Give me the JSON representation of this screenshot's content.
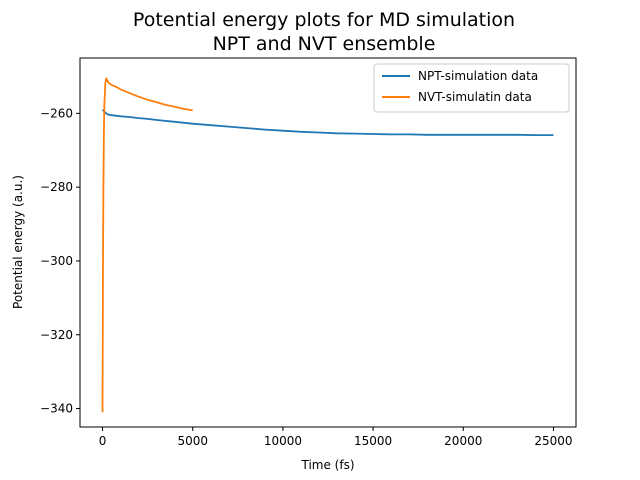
{
  "chart_data": {
    "type": "line",
    "title": "Potential energy plots for MD simulation\nNPT and NVT ensemble",
    "xlabel": "Time (fs)",
    "ylabel": "Potential energy (a.u.)",
    "xlim": [
      -1250,
      26250
    ],
    "ylim": [
      -345,
      -245
    ],
    "xticks": [
      0,
      5000,
      10000,
      15000,
      20000,
      25000
    ],
    "yticks": [
      -340,
      -320,
      -300,
      -280,
      -260
    ],
    "grid": false,
    "legend_position": "top-right",
    "series": [
      {
        "name": "NPT-simulation data",
        "color": "#1f77b4",
        "x": [
          0,
          100,
          200,
          300,
          500,
          1000,
          1500,
          2000,
          2500,
          3000,
          4000,
          5000,
          6000,
          7000,
          8000,
          9000,
          10000,
          11000,
          12000,
          13000,
          14000,
          15000,
          16000,
          17000,
          18000,
          19000,
          20000,
          21000,
          22000,
          23000,
          24000,
          25000
        ],
        "y": [
          -259.0,
          -259.5,
          -260.0,
          -260.3,
          -260.5,
          -260.8,
          -261.0,
          -261.3,
          -261.5,
          -261.8,
          -262.3,
          -262.8,
          -263.2,
          -263.6,
          -264.0,
          -264.4,
          -264.7,
          -265.0,
          -265.2,
          -265.4,
          -265.5,
          -265.6,
          -265.7,
          -265.7,
          -265.8,
          -265.8,
          -265.8,
          -265.8,
          -265.8,
          -265.8,
          -265.9,
          -265.9
        ]
      },
      {
        "name": "NVT-simulatin data",
        "color": "#ff7f0e",
        "x": [
          0,
          10,
          25,
          50,
          75,
          100,
          150,
          200,
          250,
          300,
          400,
          500,
          750,
          1000,
          1500,
          2000,
          2500,
          3000,
          3500,
          4000,
          4500,
          5000
        ],
        "y": [
          -341.0,
          -325.0,
          -300.0,
          -280.0,
          -265.0,
          -258.0,
          -252.0,
          -250.5,
          -251.0,
          -251.5,
          -252.0,
          -252.3,
          -252.8,
          -253.5,
          -254.5,
          -255.5,
          -256.3,
          -257.0,
          -257.7,
          -258.2,
          -258.8,
          -259.2
        ]
      }
    ]
  }
}
